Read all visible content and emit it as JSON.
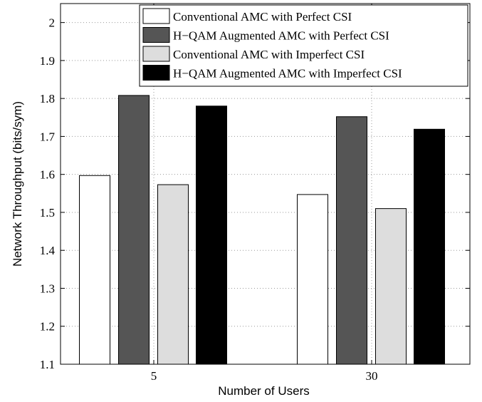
{
  "chart_data": {
    "type": "bar",
    "title": "",
    "xlabel": "Number of Users",
    "ylabel": "Network Throughput (bits/sym)",
    "categories": [
      "5",
      "30"
    ],
    "ylim": [
      1.1,
      2.05
    ],
    "yticks": [
      "1.1",
      "1.2",
      "1.3",
      "1.4",
      "1.5",
      "1.6",
      "1.7",
      "1.8",
      "1.9",
      "2"
    ],
    "grid": true,
    "legend_position": "top-right",
    "series": [
      {
        "name": "Conventional AMC  with Perfect CSI",
        "values": [
          1.597,
          1.547
        ],
        "color": "#ffffff"
      },
      {
        "name": "H−QAM Augmented AMC with Perfect CSI",
        "values": [
          1.808,
          1.752
        ],
        "color": "#555555"
      },
      {
        "name": "Conventional AMC  with Imperfect CSI",
        "values": [
          1.573,
          1.51
        ],
        "color": "#dddddd"
      },
      {
        "name": "H−QAM Augmented AMC with Imperfect CSI",
        "values": [
          1.78,
          1.719
        ],
        "color": "#000000"
      }
    ]
  }
}
